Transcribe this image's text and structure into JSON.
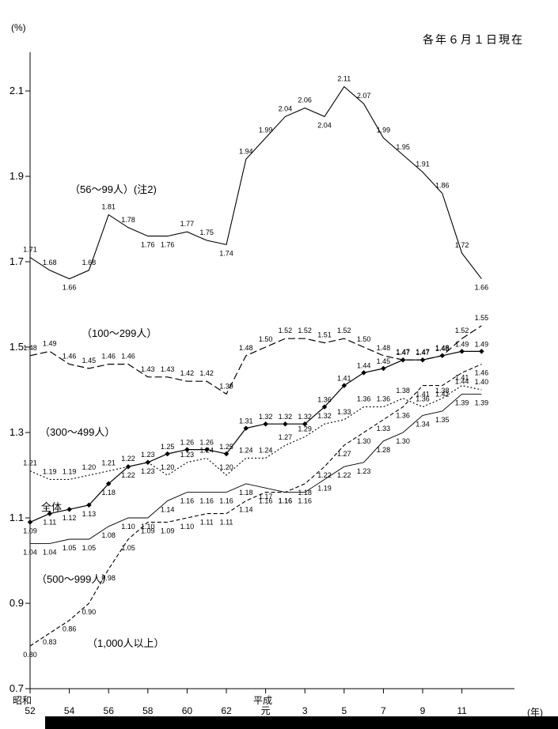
{
  "header": {
    "y_unit": "(%)",
    "date_note": "各年６月１日現在",
    "x_unit": "(年)"
  },
  "axis": {
    "era_showa": "昭和",
    "era_heisei": "平成",
    "y_ticks": [
      0.7,
      0.9,
      1.1,
      1.3,
      1.5,
      1.7,
      1.9,
      2.1
    ],
    "x_tick_labels": [
      "52",
      "54",
      "56",
      "58",
      "60",
      "62",
      "元",
      "3",
      "5",
      "7",
      "9",
      "11"
    ]
  },
  "chart_data": {
    "type": "line",
    "title": "各年６月１日現在",
    "xlabel": "(年)",
    "ylabel": "(%)",
    "ylim": [
      0.7,
      2.15
    ],
    "grid": false,
    "legend": "inline-labels",
    "x_years": [
      "昭和52",
      "昭和53",
      "昭和54",
      "昭和55",
      "昭和56",
      "昭和57",
      "昭和58",
      "昭和59",
      "昭和60",
      "昭和61",
      "昭和62",
      "昭和63",
      "平成元",
      "平成2",
      "平成3",
      "平成4",
      "平成5",
      "平成6",
      "平成7",
      "平成8",
      "平成9",
      "平成10",
      "平成11",
      "平成12"
    ],
    "series": [
      {
        "key": "size-56-99",
        "name": "（56～99人）(注2)",
        "style": "solid",
        "values": [
          1.71,
          1.68,
          1.66,
          1.68,
          1.81,
          1.78,
          1.76,
          1.76,
          1.77,
          1.75,
          1.74,
          1.94,
          1.99,
          2.04,
          2.06,
          2.04,
          2.11,
          2.07,
          1.99,
          1.95,
          1.91,
          1.86,
          1.72,
          1.66
        ]
      },
      {
        "key": "size-100-299",
        "name": "（100～299人）",
        "style": "long-dash",
        "values": [
          1.48,
          1.49,
          1.46,
          1.45,
          1.46,
          1.46,
          1.43,
          1.43,
          1.42,
          1.42,
          1.39,
          1.48,
          1.5,
          1.52,
          1.52,
          1.51,
          1.52,
          1.5,
          1.48,
          1.47,
          1.47,
          1.48,
          1.52,
          1.55
        ]
      },
      {
        "key": "size-300-499",
        "name": "（300～499人）",
        "style": "dotted",
        "values": [
          1.21,
          1.19,
          1.19,
          1.2,
          1.21,
          1.22,
          1.23,
          1.2,
          1.23,
          1.24,
          1.2,
          1.24,
          1.24,
          1.27,
          1.29,
          1.32,
          1.33,
          1.36,
          1.36,
          1.38,
          1.36,
          1.38,
          1.41,
          1.4
        ]
      },
      {
        "key": "total",
        "name": "全体",
        "style": "solid-diamond",
        "values": [
          1.09,
          1.11,
          1.12,
          1.13,
          1.18,
          1.22,
          1.23,
          1.25,
          1.26,
          1.26,
          1.25,
          1.31,
          1.32,
          1.32,
          1.32,
          1.36,
          1.41,
          1.44,
          1.45,
          1.47,
          1.47,
          1.48,
          1.49,
          1.49
        ]
      },
      {
        "key": "size-500-999",
        "name": "（500～999人）",
        "style": "solid-thin",
        "values": [
          1.04,
          1.04,
          1.05,
          1.05,
          1.08,
          1.1,
          1.1,
          1.14,
          1.16,
          1.16,
          1.16,
          1.18,
          1.17,
          1.16,
          1.16,
          1.19,
          1.22,
          1.23,
          1.28,
          1.3,
          1.34,
          1.35,
          1.39,
          1.39
        ]
      },
      {
        "key": "size-1000-plus",
        "name": "（1,000人以上）",
        "style": "dashed",
        "values": [
          0.8,
          0.83,
          0.86,
          0.9,
          0.98,
          1.05,
          1.09,
          1.09,
          1.1,
          1.11,
          1.11,
          1.14,
          1.16,
          1.16,
          1.18,
          1.22,
          1.27,
          1.3,
          1.33,
          1.36,
          1.41,
          1.41,
          1.44,
          1.46
        ]
      }
    ]
  }
}
